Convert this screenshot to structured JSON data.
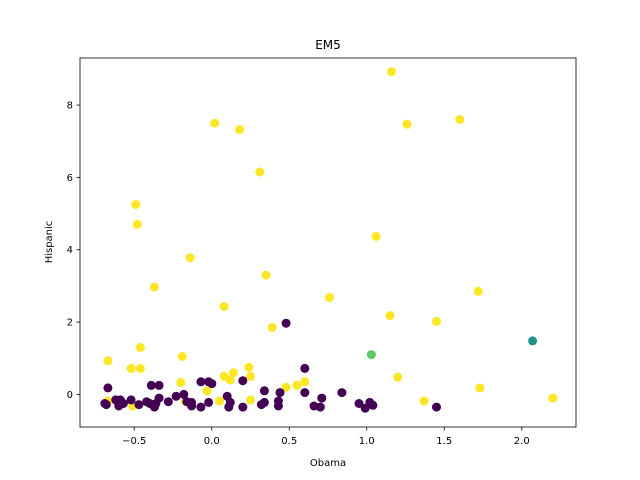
{
  "chart_data": {
    "type": "scatter",
    "title": "EM5",
    "xlabel": "Obama",
    "ylabel": "Hispanic",
    "xlim": [
      -0.85,
      2.35
    ],
    "ylim": [
      -0.9,
      9.3
    ],
    "xticks": [
      -0.5,
      0.0,
      0.5,
      1.0,
      1.5,
      2.0
    ],
    "xtick_labels": [
      "−0.5",
      "0.0",
      "0.5",
      "1.0",
      "1.5",
      "2.0"
    ],
    "yticks": [
      0,
      2,
      4,
      6,
      8
    ],
    "ytick_labels": [
      "0",
      "2",
      "4",
      "6",
      "8"
    ],
    "grid": false,
    "colors": {
      "cluster_purple": "#440154",
      "cluster_teal": "#21918c",
      "cluster_green": "#5ec962",
      "cluster_yellow": "#fde725"
    },
    "points": [
      {
        "x": 1.16,
        "y": 8.92,
        "c": "cluster_yellow"
      },
      {
        "x": 1.6,
        "y": 7.6,
        "c": "cluster_yellow"
      },
      {
        "x": 0.02,
        "y": 7.5,
        "c": "cluster_yellow"
      },
      {
        "x": 1.26,
        "y": 7.47,
        "c": "cluster_yellow"
      },
      {
        "x": 0.18,
        "y": 7.32,
        "c": "cluster_yellow"
      },
      {
        "x": 0.31,
        "y": 6.15,
        "c": "cluster_yellow"
      },
      {
        "x": -0.49,
        "y": 5.25,
        "c": "cluster_yellow"
      },
      {
        "x": -0.48,
        "y": 4.7,
        "c": "cluster_yellow"
      },
      {
        "x": 1.06,
        "y": 4.37,
        "c": "cluster_yellow"
      },
      {
        "x": -0.14,
        "y": 3.78,
        "c": "cluster_yellow"
      },
      {
        "x": 0.35,
        "y": 3.3,
        "c": "cluster_yellow"
      },
      {
        "x": -0.37,
        "y": 2.97,
        "c": "cluster_yellow"
      },
      {
        "x": 1.72,
        "y": 2.85,
        "c": "cluster_yellow"
      },
      {
        "x": 0.76,
        "y": 2.68,
        "c": "cluster_yellow"
      },
      {
        "x": 0.08,
        "y": 2.43,
        "c": "cluster_yellow"
      },
      {
        "x": 1.15,
        "y": 2.18,
        "c": "cluster_yellow"
      },
      {
        "x": 1.45,
        "y": 2.02,
        "c": "cluster_yellow"
      },
      {
        "x": 0.39,
        "y": 1.85,
        "c": "cluster_yellow"
      },
      {
        "x": -0.46,
        "y": 1.3,
        "c": "cluster_yellow"
      },
      {
        "x": -0.19,
        "y": 1.05,
        "c": "cluster_yellow"
      },
      {
        "x": -0.67,
        "y": 0.93,
        "c": "cluster_yellow"
      },
      {
        "x": -0.52,
        "y": 0.72,
        "c": "cluster_yellow"
      },
      {
        "x": -0.46,
        "y": 0.72,
        "c": "cluster_yellow"
      },
      {
        "x": 0.24,
        "y": 0.75,
        "c": "cluster_yellow"
      },
      {
        "x": 0.14,
        "y": 0.6,
        "c": "cluster_yellow"
      },
      {
        "x": 0.08,
        "y": 0.5,
        "c": "cluster_yellow"
      },
      {
        "x": 0.25,
        "y": 0.5,
        "c": "cluster_yellow"
      },
      {
        "x": 1.2,
        "y": 0.48,
        "c": "cluster_yellow"
      },
      {
        "x": 0.12,
        "y": 0.4,
        "c": "cluster_yellow"
      },
      {
        "x": 0.6,
        "y": 0.35,
        "c": "cluster_yellow"
      },
      {
        "x": -0.2,
        "y": 0.33,
        "c": "cluster_yellow"
      },
      {
        "x": 0.55,
        "y": 0.25,
        "c": "cluster_yellow"
      },
      {
        "x": 0.48,
        "y": 0.2,
        "c": "cluster_yellow"
      },
      {
        "x": 1.73,
        "y": 0.18,
        "c": "cluster_yellow"
      },
      {
        "x": -0.03,
        "y": 0.1,
        "c": "cluster_yellow"
      },
      {
        "x": 2.2,
        "y": -0.1,
        "c": "cluster_yellow"
      },
      {
        "x": 0.25,
        "y": -0.15,
        "c": "cluster_yellow"
      },
      {
        "x": -0.67,
        "y": -0.18,
        "c": "cluster_yellow"
      },
      {
        "x": 1.37,
        "y": -0.18,
        "c": "cluster_yellow"
      },
      {
        "x": 0.05,
        "y": -0.18,
        "c": "cluster_yellow"
      },
      {
        "x": -0.17,
        "y": -0.2,
        "c": "cluster_yellow"
      },
      {
        "x": -0.51,
        "y": -0.32,
        "c": "cluster_yellow"
      },
      {
        "x": 2.07,
        "y": 1.48,
        "c": "cluster_teal"
      },
      {
        "x": 1.03,
        "y": 1.1,
        "c": "cluster_green"
      },
      {
        "x": 0.48,
        "y": 1.97,
        "c": "cluster_purple"
      },
      {
        "x": 0.6,
        "y": 0.72,
        "c": "cluster_purple"
      },
      {
        "x": -0.67,
        "y": 0.18,
        "c": "cluster_purple"
      },
      {
        "x": -0.39,
        "y": 0.25,
        "c": "cluster_purple"
      },
      {
        "x": -0.34,
        "y": 0.25,
        "c": "cluster_purple"
      },
      {
        "x": -0.07,
        "y": 0.35,
        "c": "cluster_purple"
      },
      {
        "x": -0.02,
        "y": 0.35,
        "c": "cluster_purple"
      },
      {
        "x": 0.0,
        "y": 0.3,
        "c": "cluster_purple"
      },
      {
        "x": 0.2,
        "y": 0.38,
        "c": "cluster_purple"
      },
      {
        "x": 0.34,
        "y": 0.1,
        "c": "cluster_purple"
      },
      {
        "x": 0.44,
        "y": 0.05,
        "c": "cluster_purple"
      },
      {
        "x": 0.84,
        "y": 0.05,
        "c": "cluster_purple"
      },
      {
        "x": 0.6,
        "y": 0.05,
        "c": "cluster_purple"
      },
      {
        "x": -0.18,
        "y": 0.0,
        "c": "cluster_purple"
      },
      {
        "x": -0.23,
        "y": -0.05,
        "c": "cluster_purple"
      },
      {
        "x": 0.1,
        "y": -0.05,
        "c": "cluster_purple"
      },
      {
        "x": 0.71,
        "y": -0.1,
        "c": "cluster_purple"
      },
      {
        "x": -0.34,
        "y": -0.1,
        "c": "cluster_purple"
      },
      {
        "x": -0.62,
        "y": -0.15,
        "c": "cluster_purple"
      },
      {
        "x": -0.59,
        "y": -0.15,
        "c": "cluster_purple"
      },
      {
        "x": -0.52,
        "y": -0.15,
        "c": "cluster_purple"
      },
      {
        "x": 0.43,
        "y": -0.18,
        "c": "cluster_purple"
      },
      {
        "x": -0.42,
        "y": -0.2,
        "c": "cluster_purple"
      },
      {
        "x": -0.28,
        "y": -0.2,
        "c": "cluster_purple"
      },
      {
        "x": -0.16,
        "y": -0.2,
        "c": "cluster_purple"
      },
      {
        "x": -0.13,
        "y": -0.22,
        "c": "cluster_purple"
      },
      {
        "x": -0.02,
        "y": -0.22,
        "c": "cluster_purple"
      },
      {
        "x": 0.12,
        "y": -0.22,
        "c": "cluster_purple"
      },
      {
        "x": 0.34,
        "y": -0.22,
        "c": "cluster_purple"
      },
      {
        "x": 1.02,
        "y": -0.22,
        "c": "cluster_purple"
      },
      {
        "x": 0.95,
        "y": -0.25,
        "c": "cluster_purple"
      },
      {
        "x": -0.69,
        "y": -0.25,
        "c": "cluster_purple"
      },
      {
        "x": -0.4,
        "y": -0.25,
        "c": "cluster_purple"
      },
      {
        "x": -0.36,
        "y": -0.25,
        "c": "cluster_purple"
      },
      {
        "x": -0.57,
        "y": -0.25,
        "c": "cluster_purple"
      },
      {
        "x": -0.47,
        "y": -0.28,
        "c": "cluster_purple"
      },
      {
        "x": -0.68,
        "y": -0.28,
        "c": "cluster_purple"
      },
      {
        "x": 0.32,
        "y": -0.28,
        "c": "cluster_purple"
      },
      {
        "x": 1.04,
        "y": -0.3,
        "c": "cluster_purple"
      },
      {
        "x": -0.6,
        "y": -0.32,
        "c": "cluster_purple"
      },
      {
        "x": 0.43,
        "y": -0.32,
        "c": "cluster_purple"
      },
      {
        "x": 0.66,
        "y": -0.32,
        "c": "cluster_purple"
      },
      {
        "x": -0.13,
        "y": -0.32,
        "c": "cluster_purple"
      },
      {
        "x": -0.07,
        "y": -0.35,
        "c": "cluster_purple"
      },
      {
        "x": 0.11,
        "y": -0.35,
        "c": "cluster_purple"
      },
      {
        "x": 0.2,
        "y": -0.35,
        "c": "cluster_purple"
      },
      {
        "x": -0.37,
        "y": -0.35,
        "c": "cluster_purple"
      },
      {
        "x": 0.7,
        "y": -0.35,
        "c": "cluster_purple"
      },
      {
        "x": 1.45,
        "y": -0.35,
        "c": "cluster_purple"
      },
      {
        "x": 0.99,
        "y": -0.38,
        "c": "cluster_purple"
      }
    ]
  }
}
